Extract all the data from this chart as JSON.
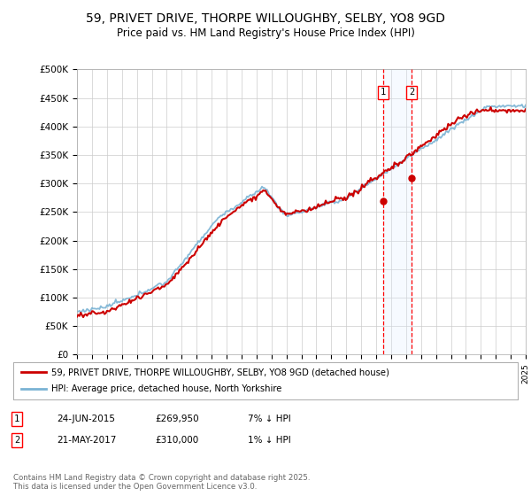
{
  "title": "59, PRIVET DRIVE, THORPE WILLOUGHBY, SELBY, YO8 9GD",
  "subtitle": "Price paid vs. HM Land Registry's House Price Index (HPI)",
  "ylabel_ticks": [
    "£0",
    "£50K",
    "£100K",
    "£150K",
    "£200K",
    "£250K",
    "£300K",
    "£350K",
    "£400K",
    "£450K",
    "£500K"
  ],
  "ylim": [
    0,
    500000
  ],
  "ytick_vals": [
    0,
    50000,
    100000,
    150000,
    200000,
    250000,
    300000,
    350000,
    400000,
    450000,
    500000
  ],
  "x_start_year": 1995,
  "x_end_year": 2025,
  "purchase1_date": 2015.48,
  "purchase1_price": 269950,
  "purchase1_label": "1",
  "purchase2_date": 2017.38,
  "purchase2_price": 310000,
  "purchase2_label": "2",
  "hpi_color": "#7ab3d4",
  "price_color": "#cc0000",
  "marker_color": "#cc0000",
  "shade_color": "#ddeeff",
  "legend_entry1": "59, PRIVET DRIVE, THORPE WILLOUGHBY, SELBY, YO8 9GD (detached house)",
  "legend_entry2": "HPI: Average price, detached house, North Yorkshire",
  "table_row1_num": "1",
  "table_row1_date": "24-JUN-2015",
  "table_row1_price": "£269,950",
  "table_row1_hpi": "7% ↓ HPI",
  "table_row2_num": "2",
  "table_row2_date": "21-MAY-2017",
  "table_row2_price": "£310,000",
  "table_row2_hpi": "1% ↓ HPI",
  "footnote": "Contains HM Land Registry data © Crown copyright and database right 2025.\nThis data is licensed under the Open Government Licence v3.0.",
  "bg_color": "#ffffff",
  "grid_color": "#cccccc"
}
